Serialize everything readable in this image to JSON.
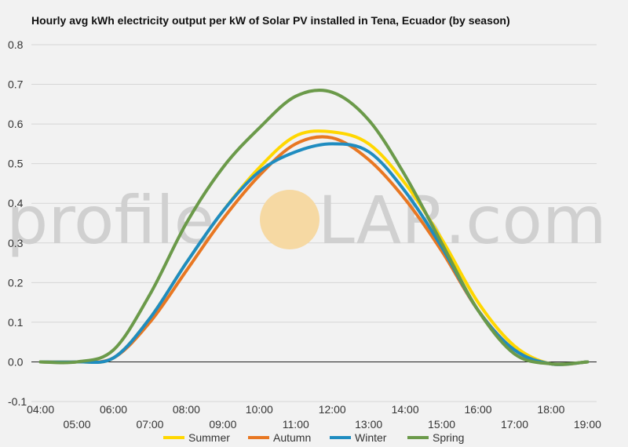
{
  "title": "Hourly avg kWh electricity output per kW of Solar PV installed in Tena, Ecuador (by season)",
  "watermark": {
    "left": "profile",
    "right": "LAR.com",
    "sun_color": "#f6d9a3"
  },
  "chart_data": {
    "type": "line",
    "title": "Hourly avg kWh electricity output per kW of Solar PV installed in Tena, Ecuador (by season)",
    "xlabel": "",
    "ylabel": "",
    "x": [
      4,
      5,
      6,
      7,
      8,
      9,
      10,
      11,
      12,
      13,
      14,
      15,
      16,
      17,
      18,
      19
    ],
    "x_tick_labels": [
      "04:00",
      "05:00",
      "06:00",
      "07:00",
      "08:00",
      "09:00",
      "10:00",
      "11:00",
      "12:00",
      "13:00",
      "14:00",
      "15:00",
      "16:00",
      "17:00",
      "18:00",
      "19:00"
    ],
    "xlim": [
      4,
      19
    ],
    "ylim": [
      -0.1,
      0.8
    ],
    "y_ticks": [
      "-0.1",
      "0.0",
      "0.1",
      "0.2",
      "0.3",
      "0.4",
      "0.5",
      "0.6",
      "0.7",
      "0.8"
    ],
    "grid": true,
    "legend": "bottom",
    "series": [
      {
        "name": "Summer",
        "color": "#ffd700",
        "values": [
          0.0,
          0.0,
          0.01,
          0.11,
          0.25,
          0.38,
          0.49,
          0.57,
          0.58,
          0.55,
          0.45,
          0.31,
          0.15,
          0.04,
          -0.005,
          0.0
        ]
      },
      {
        "name": "Autumn",
        "color": "#e87722",
        "values": [
          0.0,
          0.0,
          0.01,
          0.1,
          0.23,
          0.36,
          0.47,
          0.55,
          0.565,
          0.51,
          0.41,
          0.28,
          0.13,
          0.03,
          -0.005,
          0.0
        ]
      },
      {
        "name": "Winter",
        "color": "#1f8cc0",
        "values": [
          0.0,
          0.0,
          0.01,
          0.11,
          0.25,
          0.38,
          0.48,
          0.53,
          0.55,
          0.53,
          0.43,
          0.29,
          0.13,
          0.03,
          -0.005,
          0.0
        ]
      },
      {
        "name": "Spring",
        "color": "#6b9a4a",
        "values": [
          0.0,
          0.0,
          0.03,
          0.17,
          0.35,
          0.49,
          0.59,
          0.67,
          0.68,
          0.61,
          0.47,
          0.3,
          0.13,
          0.02,
          -0.005,
          0.0
        ]
      }
    ]
  }
}
